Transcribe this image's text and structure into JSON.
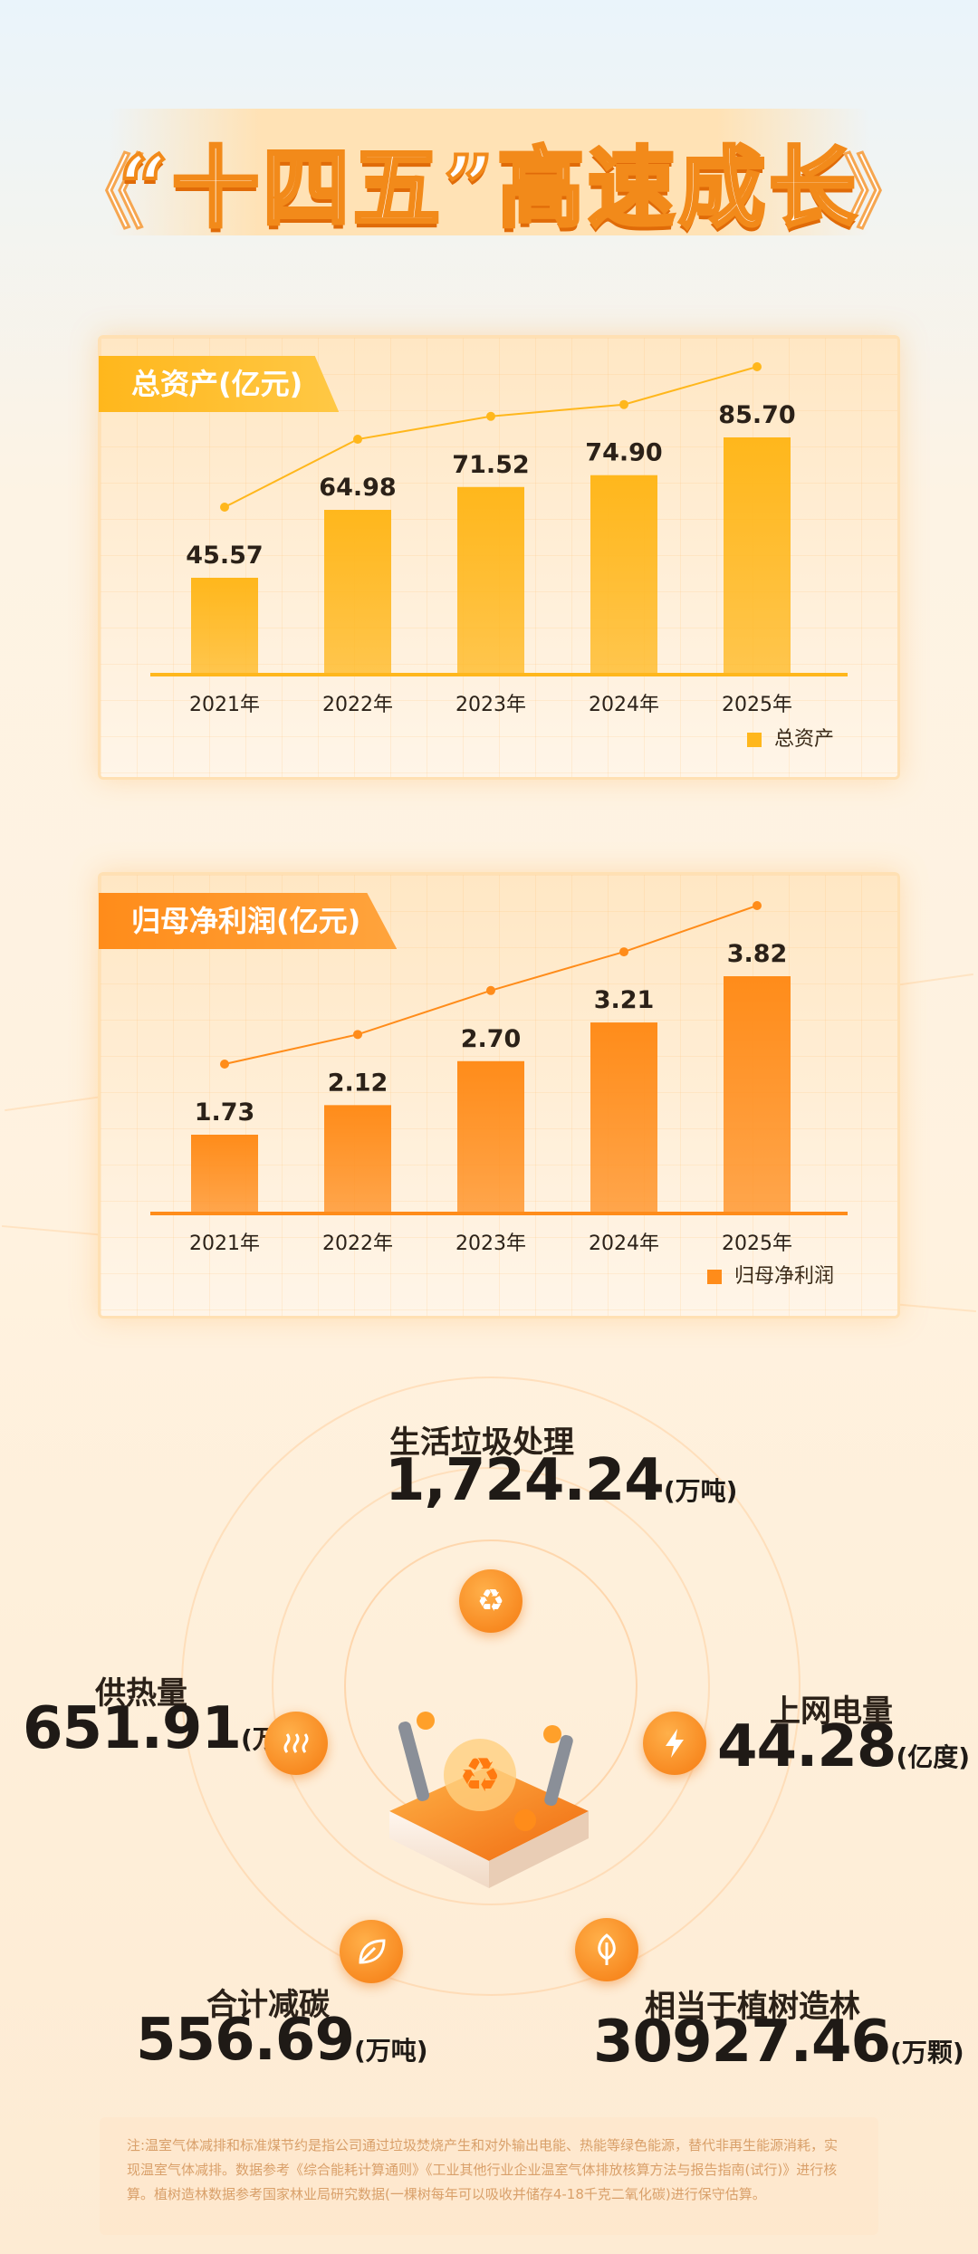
{
  "title": "“十四五”高速成长",
  "chart_data": [
    {
      "type": "bar",
      "title": "总资产(亿元)",
      "categories": [
        "2021年",
        "2022年",
        "2023年",
        "2024年",
        "2025年"
      ],
      "series": [
        {
          "name": "总资产",
          "values": [
            45.57,
            64.98,
            71.52,
            74.9,
            85.7
          ]
        }
      ],
      "value_labels": [
        "45.57",
        "64.98",
        "71.52",
        "74.90",
        "85.70"
      ],
      "color": "#ffb71c",
      "trend_line": true,
      "legend_position": "bottom-right",
      "grid": true
    },
    {
      "type": "bar",
      "title": "归母净利润(亿元)",
      "categories": [
        "2021年",
        "2022年",
        "2023年",
        "2024年",
        "2025年"
      ],
      "series": [
        {
          "name": "归母净利润",
          "values": [
            1.73,
            2.12,
            2.7,
            3.21,
            3.82
          ]
        }
      ],
      "value_labels": [
        "1.73",
        "2.12",
        "2.70",
        "3.21",
        "3.82"
      ],
      "color": "#ff8c1a",
      "trend_line": true,
      "legend_position": "bottom-right",
      "grid": true
    }
  ],
  "stats": {
    "garbage": {
      "title": "生活垃圾处理",
      "value": "1,724.24",
      "unit": "(万吨)",
      "icon": "recycle-icon"
    },
    "heat": {
      "title": "供热量",
      "value": "651.91",
      "unit": "(万吨)",
      "icon": "heat-waves-icon"
    },
    "power": {
      "title": "上网电量",
      "value": "44.28",
      "unit": "(亿度)",
      "icon": "lightning-icon"
    },
    "carbon": {
      "title": "合计减碳",
      "value": "556.69",
      "unit": "(万吨)",
      "icon": "leaf-icon"
    },
    "trees": {
      "title": "相当于植树造林",
      "value": "30927.46",
      "unit": "(万颗)",
      "icon": "tree-icon"
    }
  },
  "note": "注:温室气体减排和标准煤节约是指公司通过垃圾焚烧产生和对外输出电能、热能等绿色能源，替代非再生能源消耗，实现温室气体减排。数据参考《综合能耗计算通则》《工业其他行业企业温室气体排放核算方法与报告指南(试行)》进行核算。植树造林数据参考国家林业局研究数据(一棵树每年可以吸收并储存4-18千克二氧化碳)进行保守估算。",
  "colors": {
    "accent": "#f28a1a",
    "bar1": "#ffb71c",
    "bar2": "#ff8c1a"
  }
}
